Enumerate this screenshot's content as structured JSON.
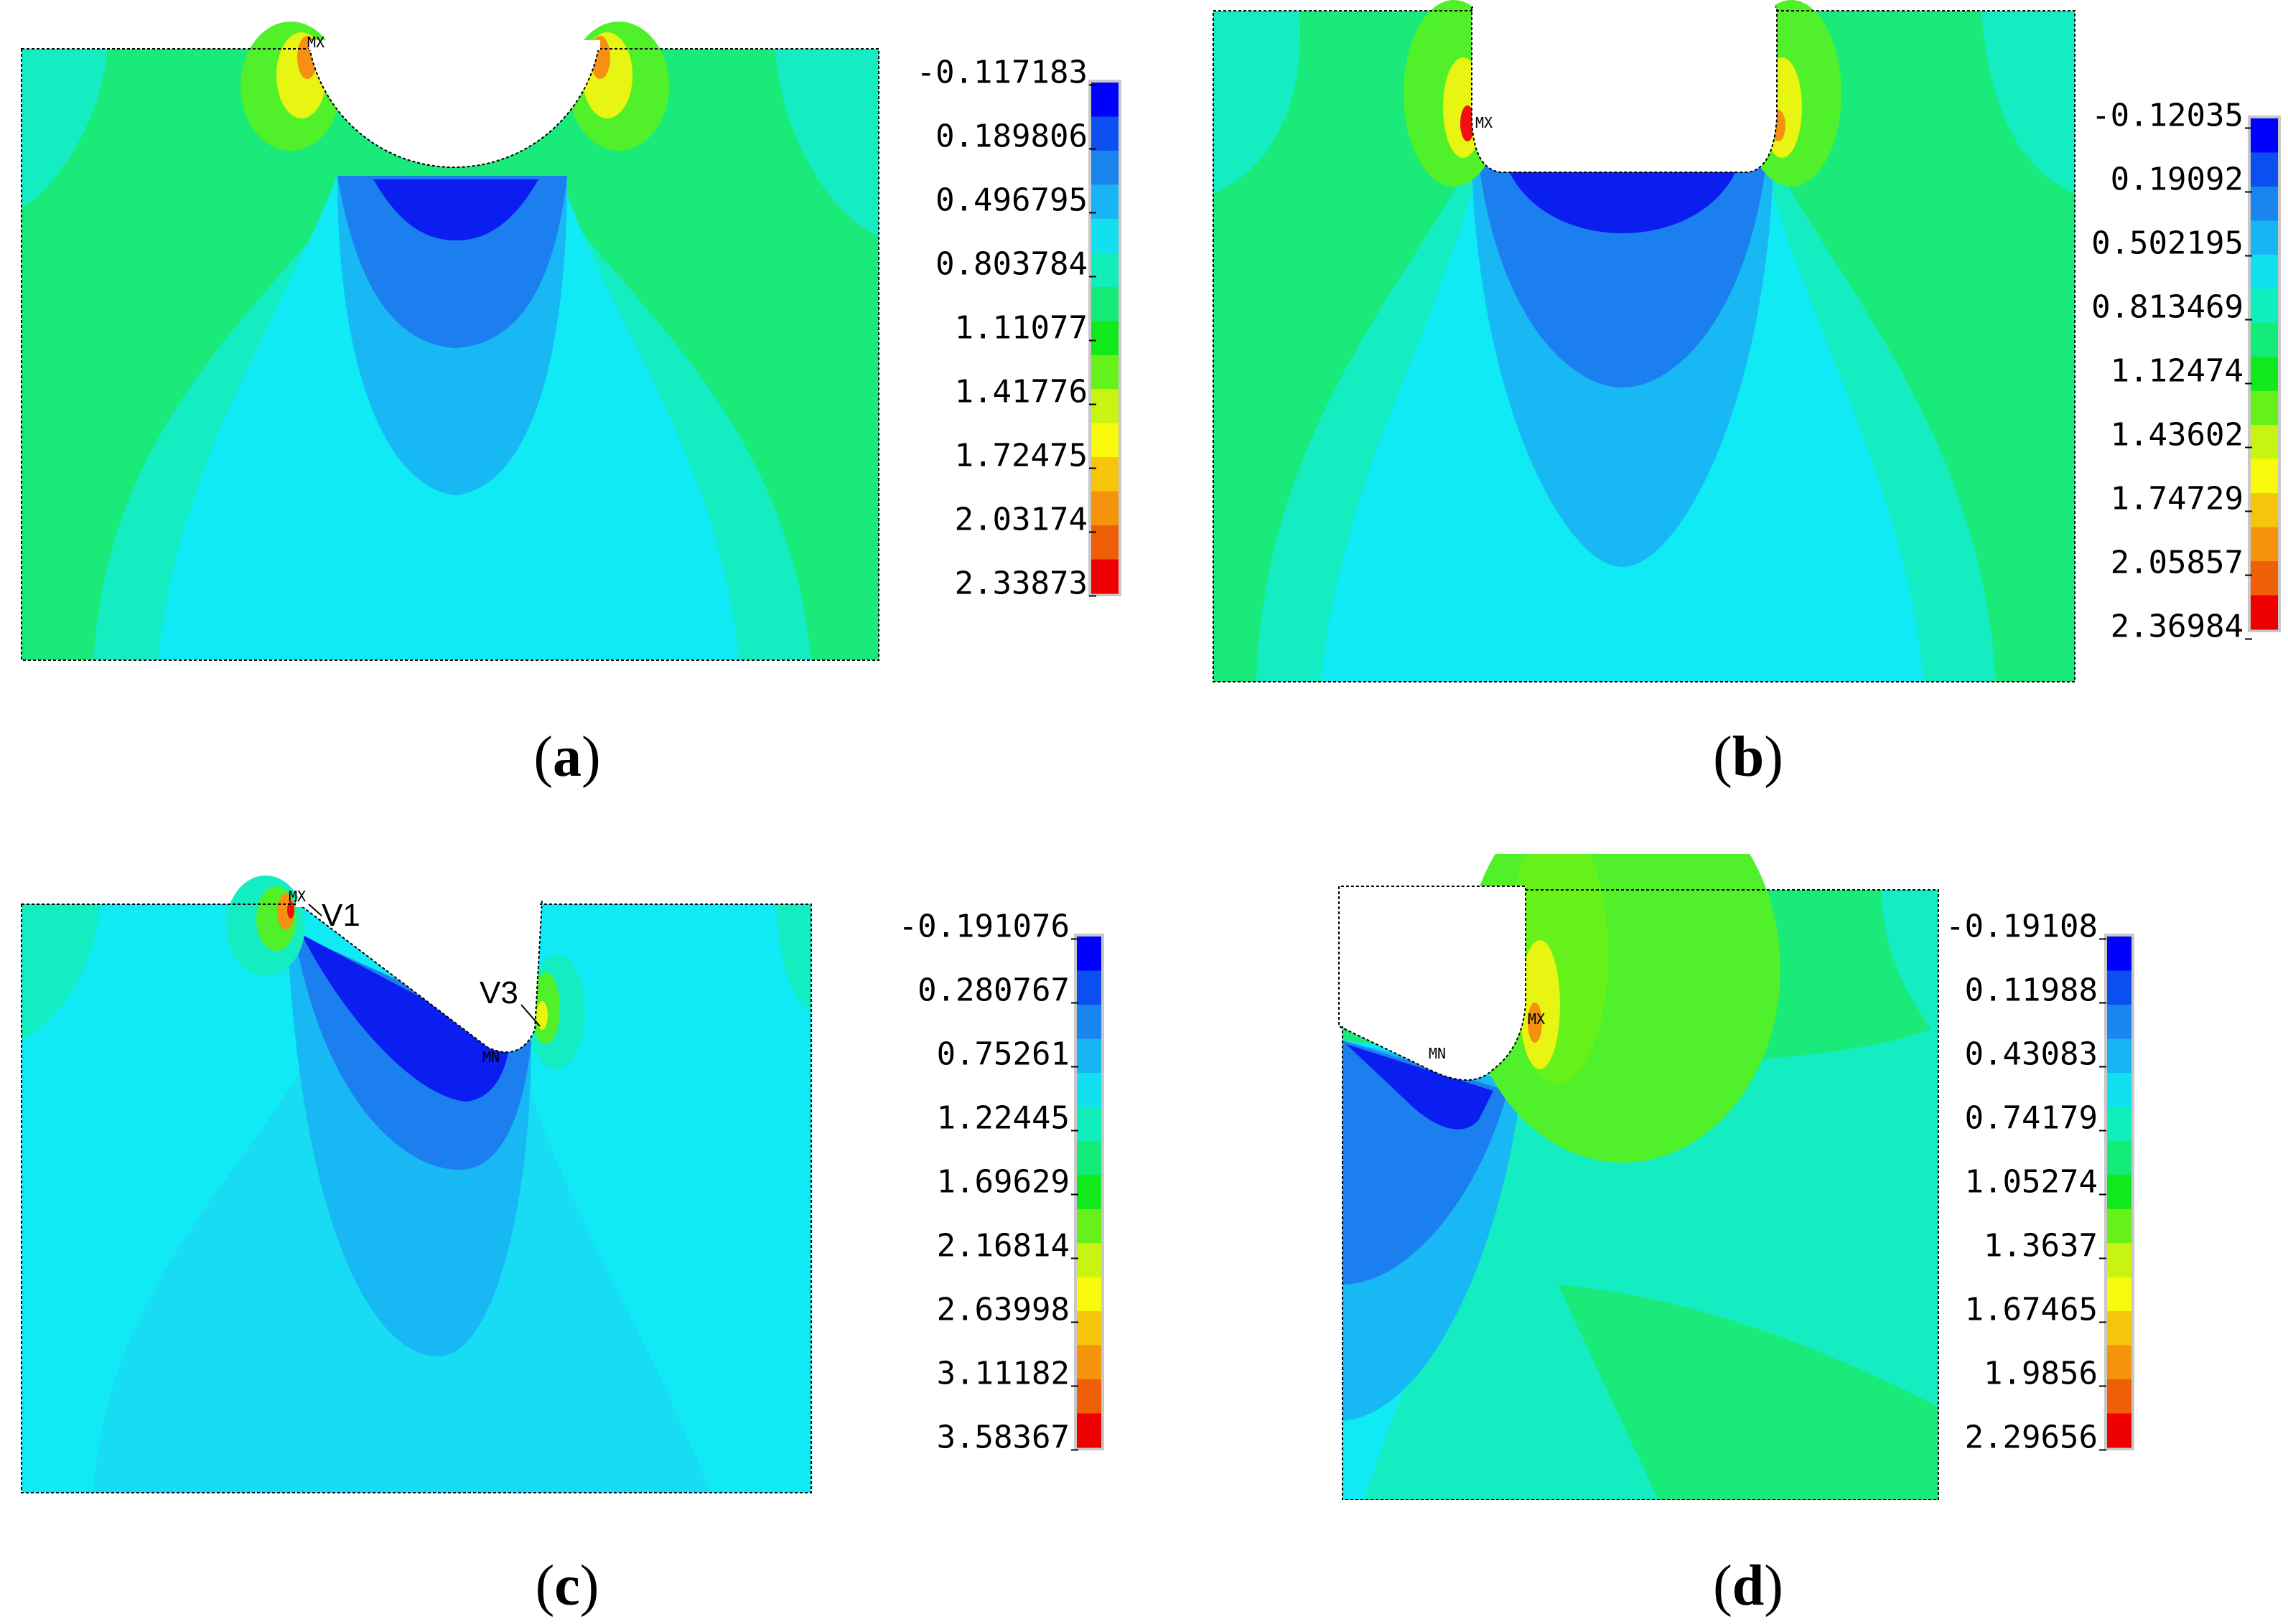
{
  "panels": [
    {
      "id": "a",
      "caption_open": "(",
      "caption_letter": "a",
      "caption_close": ")",
      "legend": [
        "-0.117183",
        "0.189806",
        "0.496795",
        "0.803784",
        "1.11077",
        "1.41776",
        "1.72475",
        "2.03174",
        "2.33873"
      ],
      "markers": [
        "MX"
      ],
      "notch": "semicircle"
    },
    {
      "id": "b",
      "caption_open": "(",
      "caption_letter": "b",
      "caption_close": ")",
      "legend": [
        "-0.12035",
        "0.19092",
        "0.502195",
        "0.813469",
        "1.12474",
        "1.43602",
        "1.74729",
        "2.05857",
        "2.36984"
      ],
      "markers": [
        "MX"
      ],
      "notch": "u-shape"
    },
    {
      "id": "c",
      "caption_open": "(",
      "caption_letter": "c",
      "caption_close": ")",
      "legend": [
        "-0.191076",
        "0.280767",
        "0.75261",
        "1.22445",
        "1.69629",
        "2.16814",
        "2.63998",
        "3.11182",
        "3.58367"
      ],
      "markers": [
        "MX",
        "MN"
      ],
      "vertex_labels": [
        "V1",
        "V3"
      ],
      "notch": "v-shape"
    },
    {
      "id": "d",
      "caption_open": "(",
      "caption_letter": "d",
      "caption_close": ")",
      "legend": [
        "-0.19108",
        "0.11988",
        "0.43083",
        "0.74179",
        "1.05274",
        "1.3637",
        "1.67465",
        "1.9856",
        "2.29656"
      ],
      "markers": [
        "MX",
        "MN"
      ],
      "notch": "step"
    }
  ],
  "colorbar": [
    "#0000ff",
    "#0b4ff0",
    "#1a84ef",
    "#18b4f3",
    "#12e0f0",
    "#10eebc",
    "#14ec78",
    "#11e91d",
    "#66f11b",
    "#c8f411",
    "#f9f90c",
    "#f6c40a",
    "#f5930a",
    "#ef5f07",
    "#ee0000"
  ],
  "field_colors": {
    "deep_blue": "#0a1ef0",
    "blue": "#1c7ff0",
    "light_blue": "#18b8f4",
    "cyan": "#10eaf4",
    "aqua": "#14ecc2",
    "green": "#1aea7a",
    "lime": "#50f02a",
    "yellow": "#e8f412",
    "orange": "#f59010",
    "red": "#f01010"
  }
}
